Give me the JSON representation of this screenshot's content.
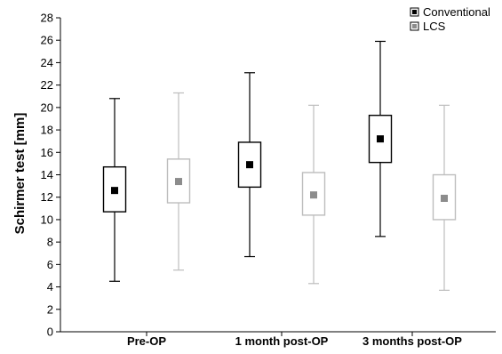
{
  "chart_data": {
    "type": "box",
    "ylabel": "Schirmer test [mm]",
    "ylim": [
      0,
      28
    ],
    "yticks": [
      0,
      2,
      4,
      6,
      8,
      10,
      12,
      14,
      16,
      18,
      20,
      22,
      24,
      26,
      28
    ],
    "categories": [
      "Pre-OP",
      "1 month post-OP",
      "3 months post-OP"
    ],
    "legend_position": "top-right",
    "series": [
      {
        "name": "Conventional",
        "color": "#000000",
        "boxes": [
          {
            "whisker_low": 4.5,
            "box_low": 10.7,
            "mean": 12.6,
            "box_high": 14.7,
            "whisker_high": 20.8
          },
          {
            "whisker_low": 6.7,
            "box_low": 12.9,
            "mean": 14.9,
            "box_high": 16.9,
            "whisker_high": 23.1
          },
          {
            "whisker_low": 8.5,
            "box_low": 15.1,
            "mean": 17.2,
            "box_high": 19.3,
            "whisker_high": 25.9
          }
        ]
      },
      {
        "name": "LCS",
        "color": "#8c8c8c",
        "boxes": [
          {
            "whisker_low": 5.5,
            "box_low": 11.5,
            "mean": 13.4,
            "box_high": 15.4,
            "whisker_high": 21.3
          },
          {
            "whisker_low": 4.3,
            "box_low": 10.4,
            "mean": 12.2,
            "box_high": 14.2,
            "whisker_high": 20.2
          },
          {
            "whisker_low": 3.7,
            "box_low": 10.0,
            "mean": 11.9,
            "box_high": 14.0,
            "whisker_high": 20.2
          }
        ]
      }
    ]
  }
}
